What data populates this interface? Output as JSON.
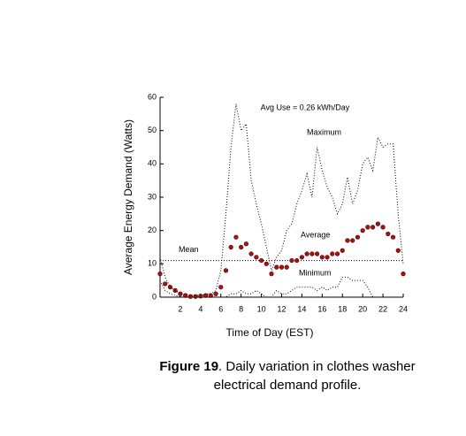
{
  "chart_data": {
    "type": "line",
    "x_label": "Time of Day (EST)",
    "y_label": "Average Energy Demand (Watts)",
    "annotation": "Avg Use = 0.26 kWh/Day",
    "mean": {
      "label": "Mean",
      "value": 11
    },
    "x": [
      0,
      0.5,
      1,
      1.5,
      2,
      2.5,
      3,
      3.5,
      4,
      4.5,
      5,
      5.5,
      6,
      6.5,
      7,
      7.5,
      8,
      8.5,
      9,
      9.5,
      10,
      10.5,
      11,
      11.5,
      12,
      12.5,
      13,
      13.5,
      14,
      14.5,
      15,
      15.5,
      16,
      16.5,
      17,
      17.5,
      18,
      18.5,
      19,
      19.5,
      20,
      20.5,
      21,
      21.5,
      22,
      22.5,
      23,
      23.5,
      24
    ],
    "series": [
      {
        "name": "Average",
        "color": "#b01010",
        "style": "markers",
        "values": [
          7,
          4,
          3,
          2,
          1,
          0.5,
          0.2,
          0.2,
          0.3,
          0.5,
          0.5,
          1,
          3,
          8,
          15,
          18,
          15,
          16,
          13,
          12,
          11,
          10,
          7,
          9,
          9,
          9,
          11,
          11,
          12,
          13,
          13,
          13,
          12,
          12,
          13,
          13,
          14,
          17,
          17,
          18,
          20,
          21,
          21,
          22,
          21,
          19,
          18,
          14,
          7
        ]
      },
      {
        "name": "Maximum",
        "color": "#000000",
        "style": "dotted",
        "values": [
          12,
          6,
          3,
          2,
          1,
          1,
          0.5,
          0.5,
          0.5,
          1,
          1,
          2,
          8,
          25,
          45,
          58,
          50,
          52,
          35,
          28,
          22,
          15,
          8,
          12,
          14,
          20,
          22,
          28,
          32,
          37,
          30,
          45,
          38,
          33,
          30,
          25,
          28,
          36,
          28,
          32,
          40,
          42,
          38,
          48,
          45,
          46,
          46,
          25,
          10
        ]
      },
      {
        "name": "Minimum",
        "color": "#000000",
        "style": "dotted",
        "values": [
          5,
          2,
          1,
          0.5,
          0,
          0,
          0,
          0,
          0,
          0,
          0,
          0,
          0,
          0,
          1,
          1,
          2,
          1,
          1,
          2,
          1,
          0,
          0,
          2,
          1,
          1,
          2,
          3,
          3,
          3,
          3,
          2,
          3,
          2,
          3,
          3,
          6,
          6,
          5,
          5,
          5,
          3,
          0,
          0,
          0,
          0,
          0,
          0,
          0
        ]
      }
    ],
    "xlim": [
      0,
      24
    ],
    "xticks": [
      2,
      4,
      6,
      8,
      10,
      12,
      14,
      16,
      18,
      20,
      22,
      24
    ],
    "ylim": [
      0,
      60
    ],
    "yticks": [
      0,
      10,
      20,
      30,
      40,
      50,
      60
    ],
    "caption_label": "Figure 19",
    "caption_text": ".  Daily variation in clothes washer electrical demand profile."
  }
}
